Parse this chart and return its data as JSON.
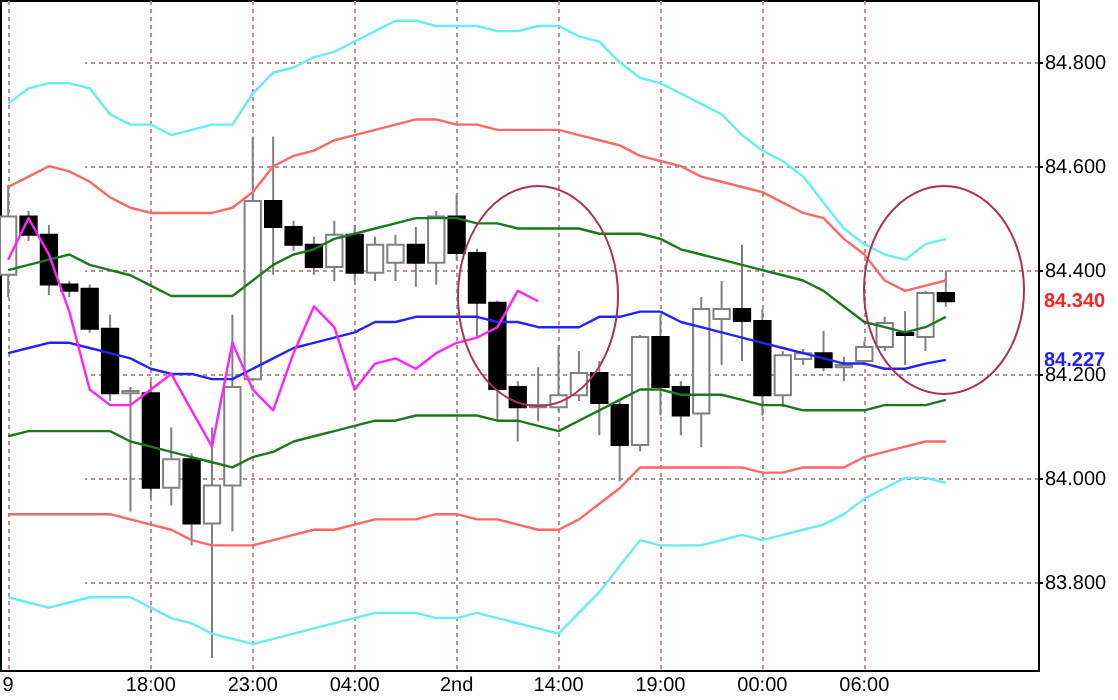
{
  "chart_data": {
    "type": "candlestick",
    "categories": [
      "9",
      null,
      null,
      null,
      null,
      null,
      null,
      "18:00",
      null,
      null,
      null,
      null,
      "23:00",
      null,
      null,
      null,
      null,
      "04:00",
      null,
      null,
      null,
      null,
      "2nd",
      null,
      null,
      null,
      null,
      "14:00",
      null,
      null,
      null,
      null,
      "19:00",
      null,
      null,
      null,
      null,
      "00:00",
      null,
      null,
      null,
      null,
      "06:00",
      null,
      null,
      null,
      null
    ],
    "ohlc": [
      [
        84.391,
        84.564,
        84.348,
        84.503
      ],
      [
        84.503,
        84.514,
        84.456,
        84.468
      ],
      [
        84.468,
        84.487,
        84.352,
        84.372
      ],
      [
        84.372,
        84.379,
        84.348,
        84.36
      ],
      [
        84.364,
        84.372,
        84.279,
        84.287
      ],
      [
        84.287,
        84.314,
        84.148,
        84.163
      ],
      [
        84.163,
        84.175,
        83.935,
        84.167
      ],
      [
        84.163,
        84.186,
        83.962,
        83.981
      ],
      [
        83.981,
        84.097,
        83.947,
        84.036
      ],
      [
        84.036,
        84.047,
        83.87,
        83.912
      ],
      [
        83.912,
        84.097,
        83.653,
        83.985
      ],
      [
        83.985,
        84.314,
        83.897,
        84.175
      ],
      [
        84.19,
        84.657,
        84.186,
        84.533
      ],
      [
        84.533,
        84.657,
        84.391,
        84.483
      ],
      [
        84.483,
        84.495,
        84.437,
        84.449
      ],
      [
        84.449,
        84.464,
        84.391,
        84.406
      ],
      [
        84.406,
        84.495,
        84.379,
        84.468
      ],
      [
        84.468,
        84.487,
        84.379,
        84.395
      ],
      [
        84.395,
        84.464,
        84.379,
        84.449
      ],
      [
        84.414,
        84.468,
        84.379,
        84.449
      ],
      [
        84.449,
        84.483,
        84.368,
        84.414
      ],
      [
        84.414,
        84.514,
        84.372,
        84.503
      ],
      [
        84.503,
        84.545,
        84.418,
        84.433
      ],
      [
        84.433,
        84.441,
        84.271,
        84.337
      ],
      [
        84.337,
        84.341,
        84.109,
        84.171
      ],
      [
        84.175,
        84.186,
        84.07,
        84.136
      ],
      [
        84.136,
        84.213,
        84.109,
        84.14
      ],
      [
        84.136,
        84.256,
        84.128,
        84.159
      ],
      [
        84.159,
        84.244,
        84.148,
        84.202
      ],
      [
        84.202,
        84.225,
        84.082,
        84.144
      ],
      [
        84.14,
        84.148,
        83.993,
        84.063
      ],
      [
        84.063,
        84.275,
        84.051,
        84.271
      ],
      [
        84.271,
        84.314,
        84.12,
        84.175
      ],
      [
        84.175,
        84.186,
        84.082,
        84.12
      ],
      [
        84.124,
        84.348,
        84.059,
        84.325
      ],
      [
        84.306,
        84.379,
        84.217,
        84.325
      ],
      [
        84.325,
        84.449,
        84.225,
        84.302
      ],
      [
        84.302,
        84.325,
        84.12,
        84.159
      ],
      [
        84.159,
        84.244,
        84.136,
        84.236
      ],
      [
        84.229,
        84.248,
        84.217,
        84.24
      ],
      [
        84.24,
        84.283,
        84.205,
        84.213
      ],
      [
        84.213,
        84.233,
        84.186,
        84.217
      ],
      [
        84.225,
        84.263,
        84.217,
        84.252
      ],
      [
        84.252,
        84.31,
        84.244,
        84.298
      ],
      [
        84.279,
        84.321,
        84.217,
        84.275
      ],
      [
        84.271,
        84.36,
        84.244,
        84.356
      ],
      [
        84.356,
        84.399,
        84.329,
        84.34
      ]
    ],
    "series": [
      {
        "type": "line",
        "color": "#66eeee",
        "values": [
          84.72,
          84.75,
          84.76,
          84.76,
          84.75,
          84.7,
          84.68,
          84.68,
          84.66,
          84.67,
          84.68,
          84.68,
          84.74,
          84.78,
          84.79,
          84.81,
          84.82,
          84.84,
          84.86,
          84.88,
          84.88,
          84.87,
          84.87,
          84.87,
          84.86,
          84.86,
          84.87,
          84.87,
          84.85,
          84.84,
          84.8,
          84.77,
          84.76,
          84.74,
          84.72,
          84.7,
          84.66,
          84.63,
          84.61,
          84.58,
          84.53,
          84.48,
          84.45,
          84.43,
          84.42,
          84.45,
          84.46
        ]
      },
      {
        "type": "line",
        "color": "#ff6666",
        "values": [
          84.56,
          84.58,
          84.6,
          84.59,
          84.57,
          84.54,
          84.52,
          84.51,
          84.51,
          84.51,
          84.51,
          84.52,
          84.55,
          84.6,
          84.62,
          84.63,
          84.65,
          84.66,
          84.67,
          84.68,
          84.69,
          84.69,
          84.68,
          84.68,
          84.67,
          84.67,
          84.67,
          84.67,
          84.66,
          84.65,
          84.64,
          84.62,
          84.61,
          84.6,
          84.58,
          84.57,
          84.56,
          84.55,
          84.53,
          84.51,
          84.5,
          84.46,
          84.43,
          84.38,
          84.36,
          84.37,
          84.38
        ]
      },
      {
        "type": "line",
        "color": "#1a7a1a",
        "values": [
          84.4,
          84.41,
          84.42,
          84.43,
          84.41,
          84.4,
          84.39,
          84.37,
          84.35,
          84.35,
          84.35,
          84.35,
          84.38,
          84.41,
          84.43,
          84.44,
          84.46,
          84.47,
          84.48,
          84.49,
          84.5,
          84.5,
          84.5,
          84.49,
          84.49,
          84.48,
          84.48,
          84.48,
          84.48,
          84.47,
          84.47,
          84.47,
          84.46,
          84.44,
          84.43,
          84.42,
          84.41,
          84.4,
          84.39,
          84.38,
          84.36,
          84.33,
          84.3,
          84.29,
          84.28,
          84.29,
          84.31
        ]
      },
      {
        "type": "line",
        "color": "#2222ff",
        "values": [
          84.24,
          84.25,
          84.26,
          84.26,
          84.25,
          84.24,
          84.23,
          84.21,
          84.2,
          84.2,
          84.19,
          84.19,
          84.21,
          84.23,
          84.25,
          84.26,
          84.27,
          84.28,
          84.3,
          84.3,
          84.31,
          84.31,
          84.31,
          84.31,
          84.3,
          84.3,
          84.29,
          84.29,
          84.29,
          84.31,
          84.31,
          84.32,
          84.32,
          84.3,
          84.29,
          84.28,
          84.27,
          84.26,
          84.25,
          84.24,
          84.23,
          84.22,
          84.22,
          84.21,
          84.21,
          84.22,
          84.227
        ]
      },
      {
        "type": "line",
        "color": "#1a7a1a",
        "values": [
          84.08,
          84.09,
          84.09,
          84.09,
          84.09,
          84.09,
          84.07,
          84.06,
          84.05,
          84.04,
          84.03,
          84.02,
          84.04,
          84.05,
          84.07,
          84.08,
          84.09,
          84.1,
          84.11,
          84.11,
          84.12,
          84.12,
          84.12,
          84.12,
          84.11,
          84.11,
          84.1,
          84.09,
          84.11,
          84.13,
          84.15,
          84.17,
          84.17,
          84.16,
          84.16,
          84.16,
          84.15,
          84.14,
          84.14,
          84.13,
          84.13,
          84.13,
          84.13,
          84.14,
          84.14,
          84.14,
          84.15
        ]
      },
      {
        "type": "line",
        "color": "#ff6666",
        "values": [
          83.93,
          83.93,
          83.93,
          83.93,
          83.93,
          83.93,
          83.92,
          83.91,
          83.9,
          83.88,
          83.87,
          83.87,
          83.87,
          83.88,
          83.89,
          83.9,
          83.9,
          83.91,
          83.92,
          83.92,
          83.92,
          83.93,
          83.93,
          83.92,
          83.92,
          83.91,
          83.9,
          83.9,
          83.92,
          83.95,
          83.98,
          84.02,
          84.02,
          84.02,
          84.02,
          84.02,
          84.02,
          84.01,
          84.01,
          84.02,
          84.02,
          84.02,
          84.04,
          84.05,
          84.06,
          84.07,
          84.07
        ]
      },
      {
        "type": "line",
        "color": "#66eeee",
        "values": [
          83.77,
          83.76,
          83.75,
          83.76,
          83.77,
          83.77,
          83.77,
          83.75,
          83.73,
          83.72,
          83.7,
          83.69,
          83.68,
          83.69,
          83.7,
          83.71,
          83.72,
          83.73,
          83.74,
          83.74,
          83.74,
          83.73,
          83.73,
          83.74,
          83.73,
          83.72,
          83.71,
          83.7,
          83.74,
          83.78,
          83.83,
          83.88,
          83.87,
          83.87,
          83.87,
          83.88,
          83.89,
          83.88,
          83.89,
          83.9,
          83.91,
          83.93,
          83.96,
          83.98,
          84.0,
          84.0,
          83.99
        ]
      },
      {
        "type": "line",
        "color": "#ff22ff",
        "values": [
          84.42,
          84.5,
          84.43,
          84.32,
          84.17,
          84.14,
          84.14,
          84.17,
          84.2,
          84.13,
          84.06,
          84.26,
          84.17,
          84.13,
          84.24,
          84.33,
          84.29,
          84.17,
          84.22,
          84.23,
          84.21,
          84.24,
          84.26,
          84.27,
          84.29,
          84.36,
          84.34,
          null,
          null,
          null,
          null,
          null,
          null,
          null,
          null,
          null,
          null,
          null,
          null,
          null,
          null,
          null,
          null,
          null,
          null,
          null,
          null
        ]
      }
    ],
    "ylim": [
      83.63,
      84.92
    ],
    "yticks": [
      {
        "value": 83.8,
        "label": "83.800"
      },
      {
        "value": 84.0,
        "label": "84.000"
      },
      {
        "value": 84.2,
        "label": "84.200"
      },
      {
        "value": 84.4,
        "label": "84.400"
      },
      {
        "value": 84.6,
        "label": "84.600"
      },
      {
        "value": 84.8,
        "label": "84.800"
      }
    ],
    "grid": true,
    "annotations": [
      "84.340",
      "84.227"
    ]
  }
}
